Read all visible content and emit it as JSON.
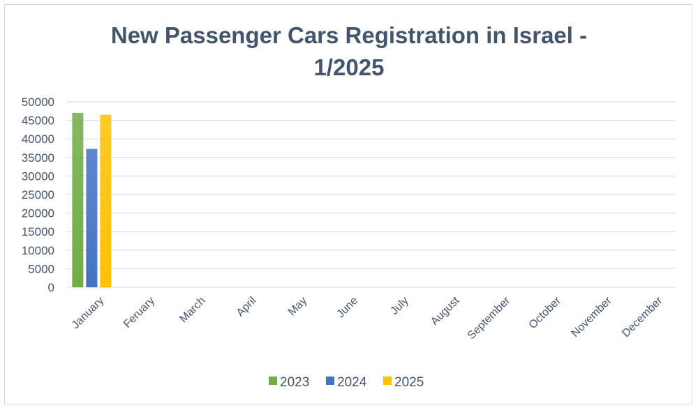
{
  "chart_data": {
    "type": "bar",
    "title": "New Passenger Cars Registration in Israel -\n1/2025",
    "categories": [
      "January",
      "Feruary",
      "March",
      "April",
      "May",
      "June",
      "July",
      "August",
      "September",
      "October",
      "November",
      "December"
    ],
    "series": [
      {
        "name": "2023",
        "values": [
          47000,
          null,
          null,
          null,
          null,
          null,
          null,
          null,
          null,
          null,
          null,
          null
        ],
        "color": "#70ad47"
      },
      {
        "name": "2024",
        "values": [
          37300,
          null,
          null,
          null,
          null,
          null,
          null,
          null,
          null,
          null,
          null,
          null
        ],
        "color": "#4472c4"
      },
      {
        "name": "2025",
        "values": [
          46500,
          null,
          null,
          null,
          null,
          null,
          null,
          null,
          null,
          null,
          null,
          null
        ],
        "color": "#ffc000"
      }
    ],
    "yticks": [
      "0",
      "5000",
      "10000",
      "15000",
      "20000",
      "25000",
      "30000",
      "35000",
      "40000",
      "45000",
      "50000"
    ],
    "ylim": [
      0,
      50000
    ],
    "grid": true,
    "legend_position": "bottom"
  }
}
